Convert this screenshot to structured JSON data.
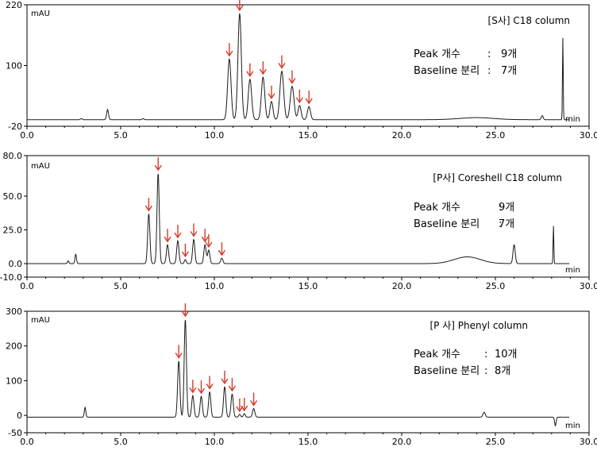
{
  "chart_data": [
    {
      "type": "line",
      "unit_label": "mAU",
      "x_unit_label": "min",
      "title": "[S사] C18 column",
      "info": [
        {
          "label": "Peak 개수",
          "sep": ":",
          "value": "9개"
        },
        {
          "label": "Baseline 분리",
          "sep": ":",
          "value": "7개"
        }
      ],
      "xlim": [
        0,
        30
      ],
      "ylim": [
        -20,
        220
      ],
      "x_ticks": [
        "0.0",
        "5.0",
        "10.0",
        "15.0",
        "20.0",
        "25.0",
        "30.0"
      ],
      "y_ticks": [
        {
          "value": 220,
          "label": "220"
        },
        {
          "value": 100,
          "label": "100"
        },
        {
          "value": -20,
          "label": "-20"
        }
      ],
      "baseline": -7,
      "peaks": [
        {
          "x": 2.9,
          "h": 2,
          "w": 0.05
        },
        {
          "x": 4.3,
          "h": 20,
          "w": 0.05
        },
        {
          "x": 6.2,
          "h": 2,
          "w": 0.05
        },
        {
          "x": 10.8,
          "h": 120,
          "w": 0.09
        },
        {
          "x": 11.35,
          "h": 210,
          "w": 0.09
        },
        {
          "x": 11.9,
          "h": 80,
          "w": 0.09
        },
        {
          "x": 12.6,
          "h": 84,
          "w": 0.09
        },
        {
          "x": 13.05,
          "h": 36,
          "w": 0.08
        },
        {
          "x": 13.6,
          "h": 96,
          "w": 0.1
        },
        {
          "x": 14.15,
          "h": 66,
          "w": 0.1
        },
        {
          "x": 14.55,
          "h": 28,
          "w": 0.08
        },
        {
          "x": 15.05,
          "h": 26,
          "w": 0.08
        },
        {
          "x": 24.0,
          "h": 4,
          "w": 0.9
        },
        {
          "x": 27.5,
          "h": 8,
          "w": 0.05
        },
        {
          "x": 28.6,
          "h": 162,
          "w": 0.02
        }
      ],
      "arrows": [
        10.8,
        11.35,
        11.9,
        12.6,
        13.05,
        13.6,
        14.15,
        14.55,
        15.05
      ]
    },
    {
      "type": "line",
      "unit_label": "mAU",
      "x_unit_label": "min",
      "title": "[P사] Coreshell C18 column",
      "info": [
        {
          "label": "Peak 개수",
          "sep": ":",
          "value": "9개"
        },
        {
          "label": "Baseline 분리",
          "sep": ":",
          "value": "7개"
        }
      ],
      "xlim": [
        0,
        30
      ],
      "ylim": [
        -10,
        80
      ],
      "x_ticks": [
        "0.0",
        "5.0",
        "10.0",
        "15.0",
        "20.0",
        "25.0",
        "30.0"
      ],
      "y_ticks": [
        {
          "value": 80,
          "label": "80.0"
        },
        {
          "value": 50,
          "label": "50.0"
        },
        {
          "value": 25,
          "label": "25.0"
        },
        {
          "value": 0,
          "label": "0.0"
        },
        {
          "value": -10,
          "label": "-10.0"
        }
      ],
      "baseline": 0,
      "peaks": [
        {
          "x": 2.2,
          "h": 2,
          "w": 0.04
        },
        {
          "x": 2.6,
          "h": 7,
          "w": 0.04
        },
        {
          "x": 6.5,
          "h": 37,
          "w": 0.06
        },
        {
          "x": 7.0,
          "h": 67,
          "w": 0.06
        },
        {
          "x": 7.5,
          "h": 14,
          "w": 0.06
        },
        {
          "x": 8.05,
          "h": 17,
          "w": 0.06
        },
        {
          "x": 8.45,
          "h": 3,
          "w": 0.05
        },
        {
          "x": 8.9,
          "h": 18,
          "w": 0.06
        },
        {
          "x": 9.5,
          "h": 14,
          "w": 0.06
        },
        {
          "x": 9.7,
          "h": 10,
          "w": 0.06
        },
        {
          "x": 10.4,
          "h": 4,
          "w": 0.06
        },
        {
          "x": 23.5,
          "h": 5,
          "w": 0.7
        },
        {
          "x": 26.0,
          "h": 14,
          "w": 0.06
        },
        {
          "x": 28.1,
          "h": 28,
          "w": 0.02
        }
      ],
      "arrows": [
        6.5,
        7.0,
        7.5,
        8.05,
        8.45,
        8.9,
        9.5,
        9.7,
        10.4
      ]
    },
    {
      "type": "line",
      "unit_label": "mAU",
      "x_unit_label": "min",
      "title": "[P 사] Phenyl column",
      "info": [
        {
          "label": "Peak 개수",
          "sep": ":",
          "value": "10개"
        },
        {
          "label": "Baseline 분리",
          "sep": ":",
          "value": "8개"
        }
      ],
      "xlim": [
        0,
        30
      ],
      "ylim": [
        -50,
        300
      ],
      "x_ticks": [
        "0.0",
        "5.0",
        "10.0",
        "15.0",
        "20.0",
        "25.0",
        "30.0"
      ],
      "y_ticks": [
        {
          "value": 300,
          "label": "300"
        },
        {
          "value": 200,
          "label": "200"
        },
        {
          "value": 100,
          "label": "100"
        },
        {
          "value": 0,
          "label": "0"
        },
        {
          "value": -50,
          "label": "-50"
        }
      ],
      "baseline": -5,
      "peaks": [
        {
          "x": 3.1,
          "h": 28,
          "w": 0.04
        },
        {
          "x": 8.1,
          "h": 162,
          "w": 0.06
        },
        {
          "x": 8.45,
          "h": 282,
          "w": 0.06
        },
        {
          "x": 8.85,
          "h": 62,
          "w": 0.06
        },
        {
          "x": 9.3,
          "h": 60,
          "w": 0.06
        },
        {
          "x": 9.75,
          "h": 73,
          "w": 0.06
        },
        {
          "x": 10.55,
          "h": 88,
          "w": 0.06
        },
        {
          "x": 10.95,
          "h": 67,
          "w": 0.06
        },
        {
          "x": 11.35,
          "h": 8,
          "w": 0.05
        },
        {
          "x": 11.6,
          "h": 10,
          "w": 0.05
        },
        {
          "x": 12.1,
          "h": 25,
          "w": 0.06
        },
        {
          "x": 24.4,
          "h": 14,
          "w": 0.06
        },
        {
          "x": 28.2,
          "h": -25,
          "w": 0.04
        }
      ],
      "arrows": [
        8.1,
        8.45,
        8.85,
        9.3,
        9.75,
        10.55,
        10.95,
        11.35,
        11.6,
        12.1
      ]
    }
  ],
  "colors": {
    "trace": "#1a1a1a",
    "arrow": "#d63a2a",
    "axis": "#000000",
    "text": "#000000"
  }
}
